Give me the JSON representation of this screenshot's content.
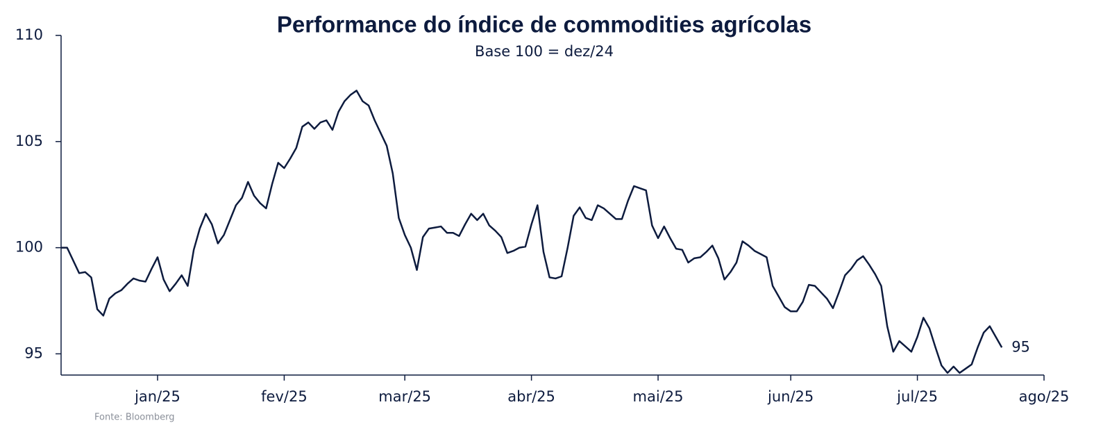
{
  "chart_data": {
    "type": "line",
    "title": "Performance do índice de commodities agrícolas",
    "subtitle": "Base 100 = dez/24",
    "source": "Fonte: Bloomberg",
    "end_label": "95",
    "color": "#0d1b3e",
    "categories": [
      null,
      null,
      null,
      null,
      null,
      null,
      null,
      null,
      null,
      null,
      null,
      null,
      null,
      null,
      null,
      null,
      "jan/25",
      null,
      null,
      null,
      null,
      null,
      null,
      null,
      null,
      null,
      null,
      null,
      null,
      null,
      null,
      null,
      null,
      null,
      null,
      null,
      null,
      "fev/25",
      null,
      null,
      null,
      null,
      null,
      null,
      null,
      null,
      null,
      null,
      null,
      null,
      null,
      null,
      null,
      null,
      null,
      null,
      null,
      "mar/25",
      null,
      null,
      null,
      null,
      null,
      null,
      null,
      null,
      null,
      null,
      null,
      null,
      null,
      null,
      null,
      null,
      null,
      null,
      null,
      null,
      "abr/25",
      null,
      null,
      null,
      null,
      null,
      null,
      null,
      null,
      null,
      null,
      null,
      null,
      null,
      null,
      null,
      null,
      null,
      null,
      null,
      null,
      "mai/25",
      null,
      null,
      null,
      null,
      null,
      null,
      null,
      null,
      null,
      null,
      null,
      null,
      null,
      null,
      null,
      null,
      null,
      null,
      null,
      null,
      null,
      "jun/25",
      null,
      null,
      null,
      null,
      null,
      null,
      null,
      null,
      null,
      null,
      null,
      null,
      null,
      null,
      null,
      null,
      null,
      null,
      null,
      null,
      "jul/25",
      null,
      null,
      null,
      null,
      null,
      null,
      null,
      null,
      null,
      null,
      null,
      null,
      null,
      null,
      null,
      null,
      null,
      null,
      null,
      null,
      "ago/25"
    ],
    "values": [
      100.0,
      100.0,
      99.4,
      98.8,
      98.85,
      98.6,
      97.1,
      96.8,
      97.6,
      97.85,
      98.0,
      98.3,
      98.55,
      98.45,
      98.4,
      99.0,
      99.55,
      98.5,
      97.95,
      98.3,
      98.7,
      98.2,
      99.9,
      100.9,
      101.6,
      101.1,
      100.2,
      100.6,
      101.3,
      102.0,
      102.35,
      103.1,
      102.45,
      102.1,
      101.85,
      103.0,
      104.0,
      103.75,
      104.2,
      104.7,
      105.7,
      105.9,
      105.6,
      105.9,
      106.0,
      105.55,
      106.4,
      106.9,
      107.2,
      107.4,
      106.9,
      106.7,
      106.0,
      105.4,
      104.8,
      103.5,
      101.4,
      100.6,
      100.0,
      98.95,
      100.5,
      100.9,
      100.95,
      101.0,
      100.7,
      100.7,
      100.55,
      101.1,
      101.6,
      101.3,
      101.6,
      101.05,
      100.8,
      100.5,
      99.75,
      99.85,
      100.0,
      100.05,
      101.1,
      102.0,
      99.8,
      98.6,
      98.55,
      98.65,
      100.0,
      101.5,
      101.9,
      101.4,
      101.3,
      102.0,
      101.85,
      101.6,
      101.35,
      101.35,
      102.2,
      102.9,
      102.8,
      102.7,
      101.05,
      100.45,
      101.0,
      100.45,
      99.95,
      99.9,
      99.3,
      99.5,
      99.55,
      99.8,
      100.1,
      99.5,
      98.5,
      98.85,
      99.3,
      100.3,
      100.1,
      99.85,
      99.7,
      99.55,
      98.2,
      97.7,
      97.2,
      97.0,
      97.0,
      97.45,
      98.25,
      98.2,
      97.9,
      97.6,
      97.15,
      97.9,
      98.7,
      99.0,
      99.4,
      99.6,
      99.2,
      98.75,
      98.2,
      96.3,
      95.1,
      95.6,
      95.35,
      95.1,
      95.8,
      96.7,
      96.2,
      95.3,
      94.45,
      94.1,
      94.4,
      94.1,
      94.3,
      94.5,
      95.3,
      96.0,
      96.3,
      95.8,
      95.3,
      null,
      null,
      null,
      null,
      null,
      null,
      null
    ],
    "ylim": [
      94,
      110
    ],
    "yticks": [
      95,
      100,
      105,
      110
    ],
    "grid": false
  }
}
